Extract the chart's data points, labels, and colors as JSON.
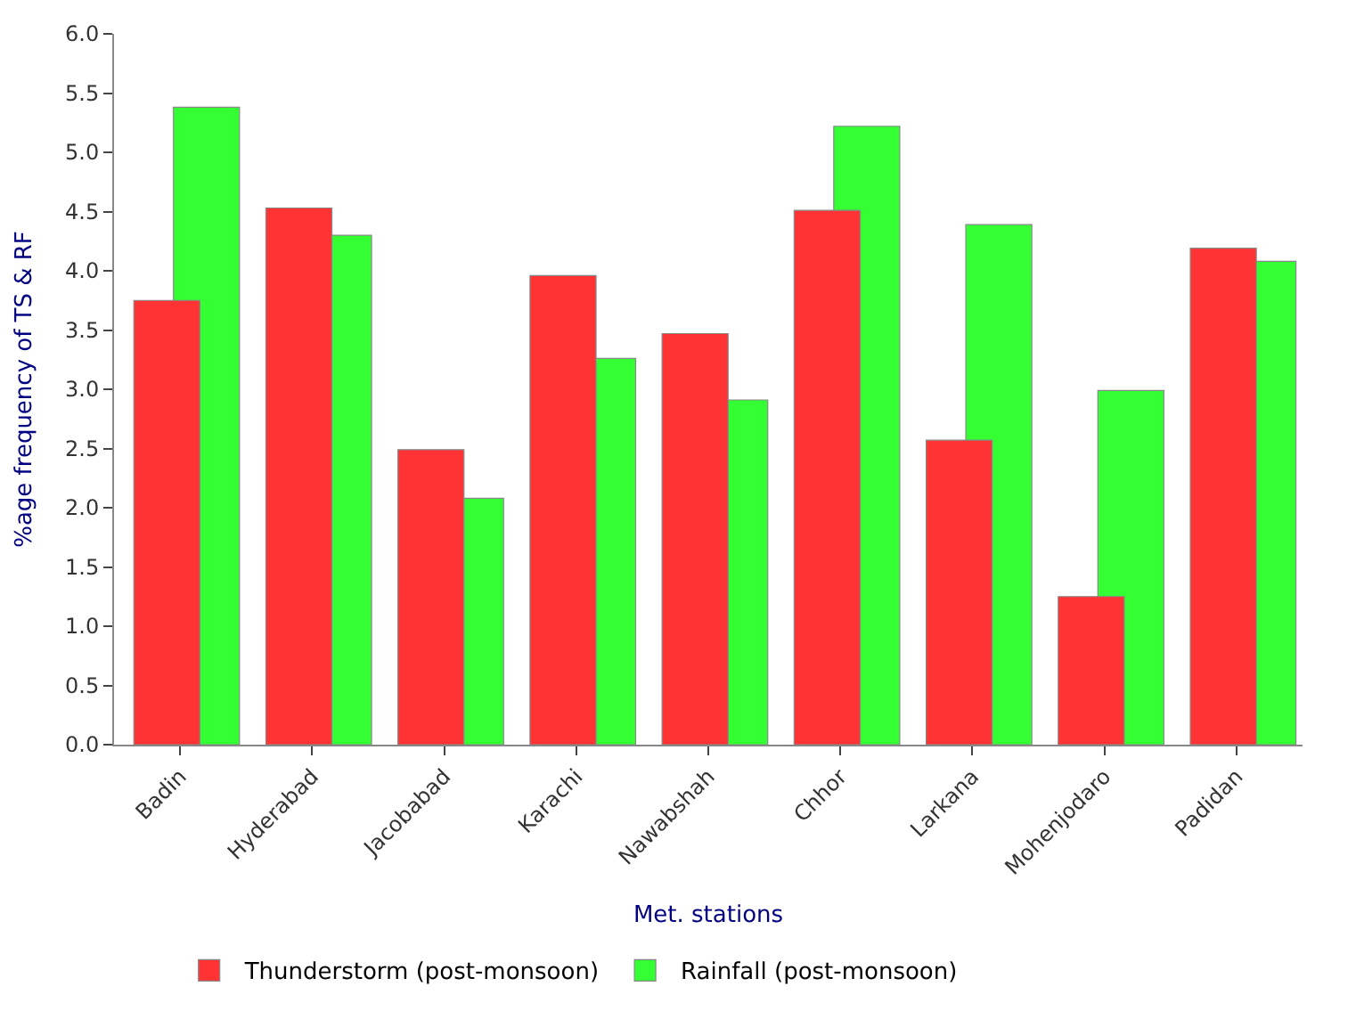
{
  "chart_data": {
    "type": "bar",
    "xlabel": "Met. stations",
    "ylabel": "%age frequency of TS & RF",
    "categories": [
      "Badin",
      "Hyderabad",
      "Jacobabad",
      "Karachi",
      "Nawabshah",
      "Chhor",
      "Larkana",
      "Mohenjodaro",
      "Padidan"
    ],
    "series": [
      {
        "name": "Thunderstorm (post-monsoon)",
        "color": "#ff3333",
        "values": [
          3.75,
          4.53,
          2.49,
          3.96,
          3.47,
          4.51,
          2.57,
          1.25,
          4.19
        ]
      },
      {
        "name": "Rainfall (post-monsoon)",
        "color": "#33ff33",
        "values": [
          5.38,
          4.3,
          2.08,
          3.26,
          2.91,
          5.22,
          4.39,
          2.99,
          4.08
        ]
      }
    ],
    "ylim": [
      0,
      6
    ],
    "yticks": [
      {
        "value": 0,
        "label": "0.0"
      },
      {
        "value": 0.5,
        "label": "0.5"
      },
      {
        "value": 1,
        "label": "1.0"
      },
      {
        "value": 1.5,
        "label": "1.5"
      },
      {
        "value": 2,
        "label": "2.0"
      },
      {
        "value": 2.5,
        "label": "2.5"
      },
      {
        "value": 3,
        "label": "3.0"
      },
      {
        "value": 3.5,
        "label": "3.5"
      },
      {
        "value": 4,
        "label": "4.0"
      },
      {
        "value": 4.5,
        "label": "4.5"
      },
      {
        "value": 5,
        "label": "5.0"
      },
      {
        "value": 5.5,
        "label": "5.5"
      },
      {
        "value": 6,
        "label": "6.0"
      }
    ],
    "legend": "bottom"
  }
}
